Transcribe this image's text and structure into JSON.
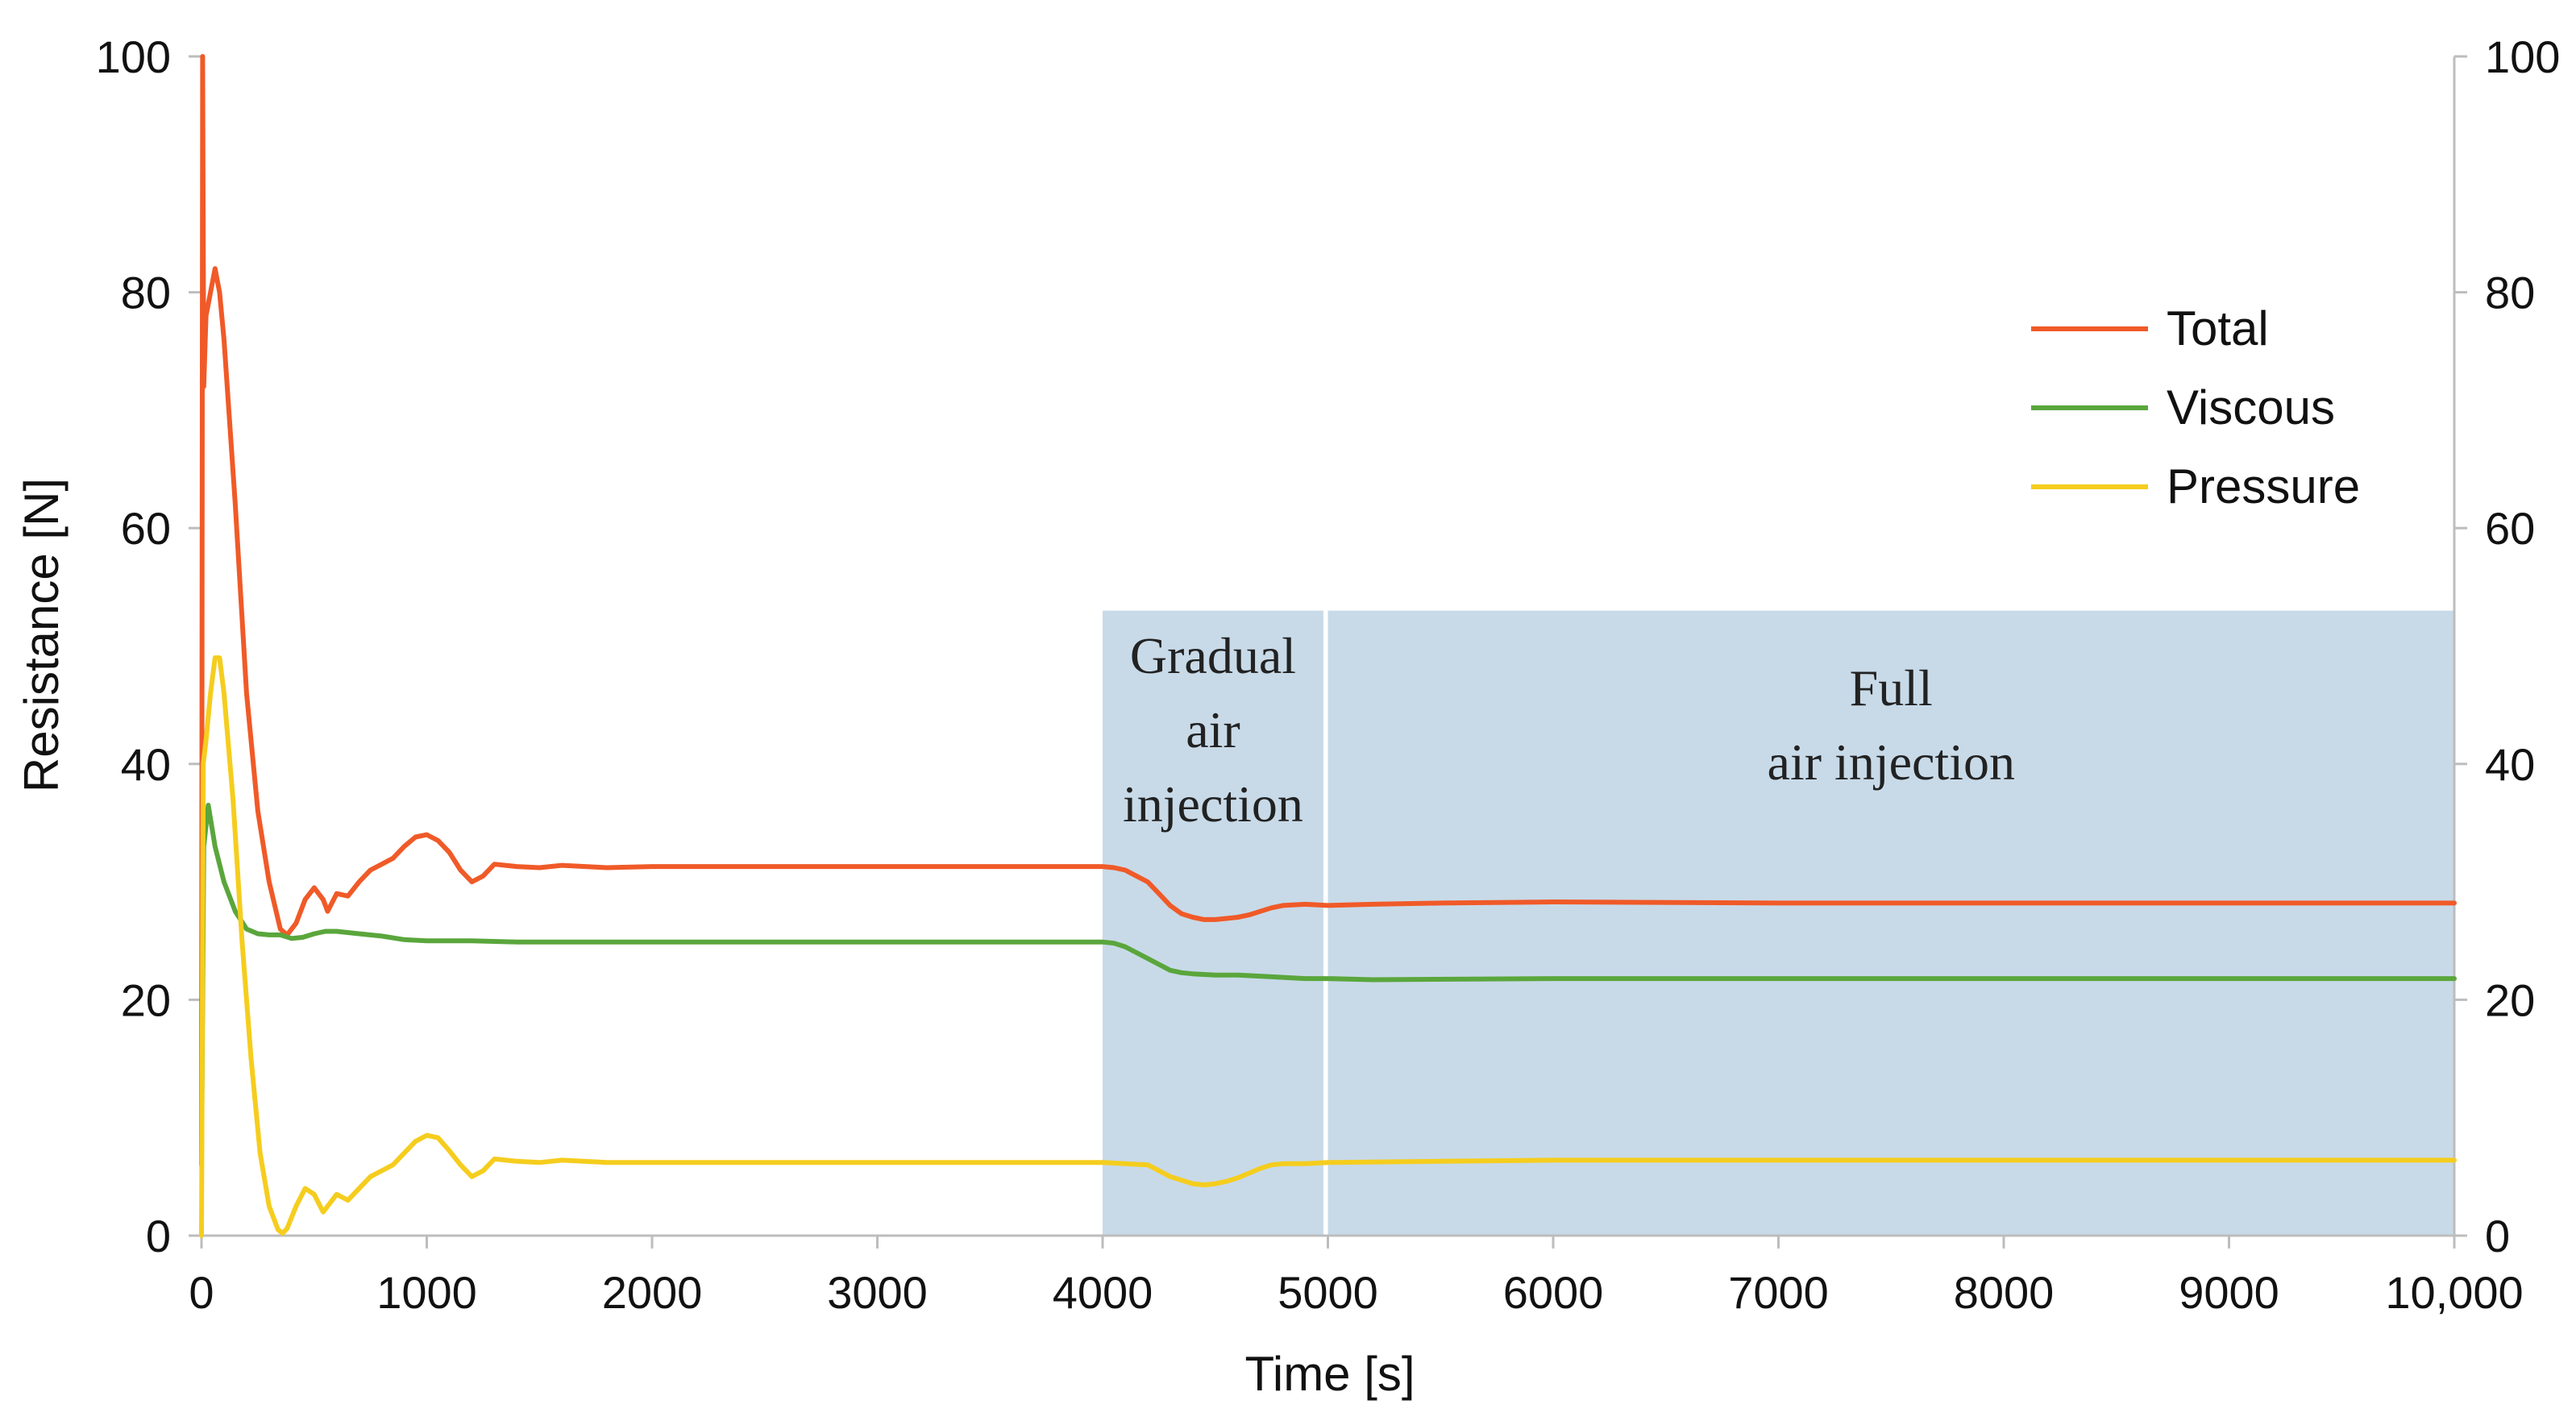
{
  "chart_data": {
    "type": "line",
    "title": "",
    "xlabel": "Time [s]",
    "ylabel": "Resistance [N]",
    "xlim": [
      0,
      10000
    ],
    "ylim": [
      0,
      100
    ],
    "x_ticks": [
      0,
      1000,
      2000,
      3000,
      4000,
      5000,
      6000,
      7000,
      8000,
      9000,
      10000
    ],
    "x_tick_labels": [
      "0",
      "1000",
      "2000",
      "3000",
      "4000",
      "5000",
      "6000",
      "7000",
      "8000",
      "9000",
      "10,000"
    ],
    "y_ticks": [
      0,
      20,
      40,
      60,
      80,
      100
    ],
    "y_tick_labels": [
      "0",
      "20",
      "40",
      "60",
      "80",
      "100"
    ],
    "right_y_tick_labels": [
      "0",
      "20",
      "40",
      "60",
      "80",
      "100"
    ],
    "grid": false,
    "legend_position": "top-right",
    "series": [
      {
        "name": "Total",
        "color": "#f05a28",
        "x": [
          0,
          5,
          10,
          20,
          40,
          60,
          80,
          100,
          150,
          200,
          250,
          300,
          350,
          380,
          420,
          460,
          500,
          540,
          560,
          600,
          650,
          700,
          750,
          800,
          850,
          900,
          950,
          1000,
          1050,
          1100,
          1150,
          1200,
          1250,
          1300,
          1400,
          1500,
          1600,
          1800,
          2000,
          2500,
          3000,
          3500,
          4000,
          4050,
          4100,
          4150,
          4200,
          4250,
          4300,
          4350,
          4400,
          4450,
          4500,
          4550,
          4600,
          4650,
          4700,
          4750,
          4800,
          4900,
          5000,
          5200,
          5500,
          6000,
          7000,
          8000,
          9000,
          10000
        ],
        "values": [
          7,
          100,
          72,
          78,
          80,
          82,
          80,
          76,
          62,
          46,
          36,
          30,
          26,
          25.5,
          26.5,
          28.5,
          29.5,
          28.5,
          27.5,
          29,
          28.8,
          30,
          31,
          31.5,
          32,
          33,
          33.8,
          34,
          33.5,
          32.5,
          31,
          30,
          30.5,
          31.5,
          31.3,
          31.2,
          31.4,
          31.2,
          31.3,
          31.3,
          31.3,
          31.3,
          31.3,
          31.2,
          31,
          30.5,
          30,
          29,
          28,
          27.3,
          27,
          26.8,
          26.8,
          26.9,
          27,
          27.2,
          27.5,
          27.8,
          28,
          28.1,
          28,
          28.1,
          28.2,
          28.3,
          28.2,
          28.2,
          28.2,
          28.2
        ]
      },
      {
        "name": "Viscous",
        "color": "#5aa63c",
        "x": [
          0,
          10,
          30,
          60,
          100,
          150,
          200,
          250,
          300,
          350,
          400,
          450,
          500,
          550,
          600,
          700,
          800,
          900,
          1000,
          1200,
          1400,
          1600,
          2000,
          2500,
          3000,
          3500,
          4000,
          4050,
          4100,
          4150,
          4200,
          4250,
          4300,
          4350,
          4400,
          4500,
          4600,
          4700,
          4800,
          4900,
          5000,
          5200,
          6000,
          7000,
          8000,
          9000,
          10000
        ],
        "values": [
          6,
          33,
          36.5,
          33,
          30,
          27.5,
          26,
          25.6,
          25.5,
          25.5,
          25.2,
          25.3,
          25.6,
          25.8,
          25.8,
          25.6,
          25.4,
          25.1,
          25,
          25,
          24.9,
          24.9,
          24.9,
          24.9,
          24.9,
          24.9,
          24.9,
          24.8,
          24.5,
          24,
          23.5,
          23,
          22.5,
          22.3,
          22.2,
          22.1,
          22.1,
          22,
          21.9,
          21.8,
          21.8,
          21.7,
          21.8,
          21.8,
          21.8,
          21.8,
          21.8
        ]
      },
      {
        "name": "Pressure",
        "color": "#f5cd1e",
        "x": [
          0,
          8,
          20,
          40,
          60,
          80,
          100,
          140,
          180,
          220,
          260,
          300,
          340,
          360,
          380,
          420,
          460,
          500,
          540,
          560,
          600,
          650,
          700,
          750,
          800,
          850,
          900,
          950,
          1000,
          1050,
          1100,
          1150,
          1200,
          1250,
          1300,
          1400,
          1500,
          1600,
          1800,
          2000,
          2500,
          3000,
          3500,
          4000,
          4100,
          4200,
          4250,
          4300,
          4350,
          4400,
          4450,
          4500,
          4550,
          4600,
          4650,
          4700,
          4750,
          4800,
          4900,
          5000,
          5500,
          6000,
          7000,
          8000,
          9000,
          10000
        ],
        "values": [
          0,
          40,
          42,
          46,
          49,
          49,
          46,
          37,
          25,
          15,
          7,
          2.5,
          0.5,
          0.2,
          0.6,
          2.5,
          4,
          3.5,
          2,
          2.5,
          3.5,
          3,
          4,
          5,
          5.5,
          6,
          7,
          8,
          8.5,
          8.3,
          7.2,
          6,
          5,
          5.5,
          6.5,
          6.3,
          6.2,
          6.4,
          6.2,
          6.2,
          6.2,
          6.2,
          6.2,
          6.2,
          6.1,
          6,
          5.5,
          5,
          4.7,
          4.4,
          4.3,
          4.4,
          4.6,
          4.9,
          5.3,
          5.7,
          6,
          6.1,
          6.1,
          6.2,
          6.3,
          6.4,
          6.4,
          6.4,
          6.4,
          6.4
        ]
      }
    ],
    "shaded_regions": [
      {
        "label_lines": [
          "Gradual",
          "air",
          "injection"
        ],
        "x_start": 4000,
        "x_end": 4980,
        "y_top": 53,
        "color": "#c8dae8"
      },
      {
        "label_lines": [
          "Full",
          "air injection"
        ],
        "x_start": 5000,
        "x_end": 10000,
        "y_top": 53,
        "color": "#c8dae8"
      }
    ]
  }
}
